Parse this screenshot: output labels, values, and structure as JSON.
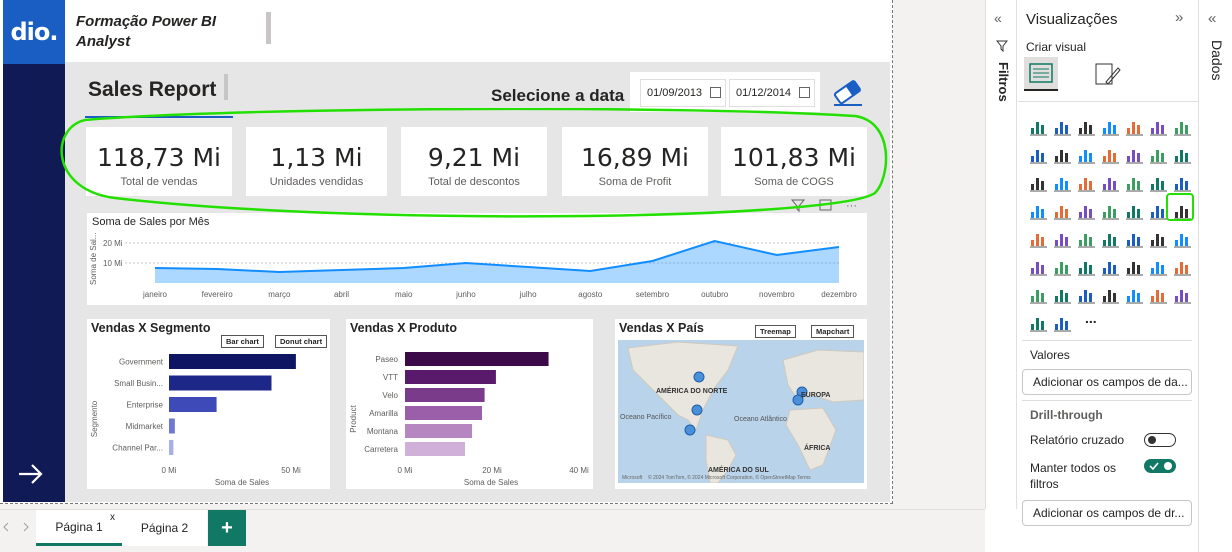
{
  "header": {
    "logo_text": "dio.",
    "title": "Formação Power BI Analyst"
  },
  "report": {
    "title": "Sales Report",
    "date_prompt": "Selecione a data",
    "date_start": "01/09/2013",
    "date_end": "01/12/2014"
  },
  "kpis": [
    {
      "value": "118,73 Mi",
      "label": "Total de vendas"
    },
    {
      "value": "1,13 Mi",
      "label": "Unidades vendidas"
    },
    {
      "value": "9,21 Mi",
      "label": "Total de descontos"
    },
    {
      "value": "16,89 Mi",
      "label": "Soma de Profit"
    },
    {
      "value": "101,83 Mi",
      "label": "Soma de COGS"
    }
  ],
  "chart_data": [
    {
      "type": "area",
      "title": "Soma de Sales por Mês",
      "ylabel": "Soma de Sal...",
      "categories": [
        "janeiro",
        "fevereiro",
        "março",
        "abril",
        "maio",
        "junho",
        "julho",
        "agosto",
        "setembro",
        "outubro",
        "novembro",
        "dezembro"
      ],
      "values": [
        7.5,
        7,
        5.5,
        6.5,
        7.5,
        10,
        8,
        6,
        11,
        21,
        14,
        18
      ],
      "yticks": [
        "20 Mi",
        "10 Mi"
      ],
      "ylim": [
        0,
        25
      ],
      "color": "#118dff"
    },
    {
      "type": "bar",
      "title": "Vendas X Segmento",
      "ylabel": "Segmento",
      "xlabel": "Soma de Sales",
      "categories": [
        "Government",
        "Small Busin...",
        "Enterprise",
        "Midmarket",
        "Channel Par..."
      ],
      "values": [
        52,
        42,
        19.5,
        2.4,
        1.8
      ],
      "xticks": [
        "0 Mi",
        "50 Mi"
      ],
      "xlim": [
        0,
        50
      ],
      "colors": [
        "#0e1563",
        "#1c2787",
        "#3e4ab8",
        "#7079d1",
        "#a9aee6"
      ],
      "buttons": [
        "Bar chart",
        "Donut chart"
      ]
    },
    {
      "type": "bar",
      "title": "Vendas X Produto",
      "ylabel": "Product",
      "xlabel": "Soma de Sales",
      "categories": [
        "Paseo",
        "VTT",
        "Velo",
        "Amarilla",
        "Montana",
        "Carretera"
      ],
      "values": [
        33,
        20.9,
        18.3,
        17.7,
        15.4,
        13.8
      ],
      "xticks": [
        "0 Mi",
        "20 Mi",
        "40 Mi"
      ],
      "xlim": [
        0,
        40
      ],
      "colors": [
        "#3c0a49",
        "#5a1a6b",
        "#7b3b8b",
        "#9a5fa8",
        "#b686c0",
        "#d0b0d8"
      ]
    },
    {
      "type": "map",
      "title": "Vendas X País",
      "buttons": [
        "Treemap",
        "Mapchart"
      ],
      "labels": [
        "AMÉRICA DO NORTE",
        "EUROPA",
        "Oceano Pacífico",
        "Oceano Atlântico",
        "ÁFRICA",
        "AMÉRICA DO SUL"
      ],
      "attribution": "© 2024 TomTom, © 2024 Microsoft Corporation, © OpenStreetMap Terms",
      "brand": "Microsoft"
    }
  ],
  "pages": {
    "tab1": "Página 1",
    "tab2": "Página 2",
    "add": "+",
    "close": "x"
  },
  "panes": {
    "filters": "Filtros",
    "data": "Dados",
    "viz_title": "Visualizações",
    "create_visual": "Criar visual",
    "more": "...",
    "values_label": "Valores",
    "values_placeholder": "Adicionar os campos de da...",
    "drill_label": "Drill-through",
    "cross_report": "Relatório cruzado",
    "keep_filters": "Manter todos os filtros",
    "drill_placeholder": "Adicionar os campos de dr..."
  },
  "colors": {
    "nav": "#101a55",
    "accent": "#1a5ec4",
    "highlight": "#22e000",
    "teal": "#117865"
  }
}
